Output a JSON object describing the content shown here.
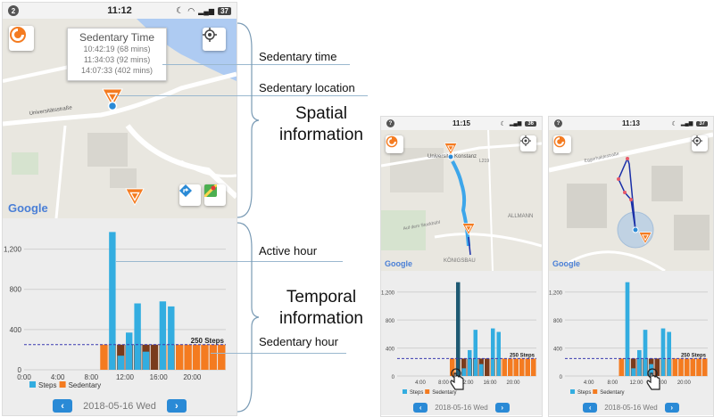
{
  "main_phone": {
    "status_time": "11:12",
    "status_badge": "2",
    "battery": "37",
    "callout": {
      "title": "Sedentary Time",
      "entries": [
        "10:42:19 (68 mins)",
        "11:34:03 (92 mins)",
        "14:07:33 (402 mins)"
      ]
    },
    "map_street": "Universitätsstraße",
    "google_logo": "Google",
    "date": "2018-05-16 Wed"
  },
  "phone2": {
    "status_time": "11:15",
    "battery": "36",
    "map_labels": [
      "Universität Konstanz",
      "ALLMANN",
      "KÖNIGSBAU",
      "Auf dem Stockbühl",
      "L219"
    ],
    "google_logo": "Google",
    "date": "2018-05-16 Wed"
  },
  "phone3": {
    "status_time": "11:13",
    "battery": "37",
    "map_labels": [
      "Eggerhaldestraße"
    ],
    "google_logo": "Google",
    "date": "2018-05-16 Wed"
  },
  "annotations": {
    "sedentary_time": "Sedentary time",
    "sedentary_location": "Sedentary location",
    "spatial": [
      "Spatial",
      "information"
    ],
    "active_hour": "Active hour",
    "temporal": [
      "Temporal",
      "information"
    ],
    "sedentary_hour": "Sedentary hour"
  },
  "colors": {
    "steps": "#33ade0",
    "sedentary": "#f47b20",
    "sedentary_dark": "#7a3b1c",
    "dark_selected": "#1f5a73",
    "nav": "#2a8ad6",
    "marker": "#f47b20",
    "water": "#aecbf2"
  },
  "chart_data": [
    {
      "type": "bar",
      "title": "",
      "ylim": [
        0,
        1400
      ],
      "yticks": [
        "0",
        "400",
        "800",
        "1,200"
      ],
      "xticks": [
        "0:00",
        "4:00",
        "8:00",
        "12:00",
        "16:00",
        "20:00"
      ],
      "threshold": 250,
      "threshold_label": "250 Steps",
      "legend": [
        "Steps",
        "Sedentary"
      ],
      "steps": [
        0,
        0,
        0,
        0,
        0,
        0,
        0,
        0,
        0,
        0,
        1370,
        140,
        370,
        660,
        180,
        0,
        680,
        630,
        0,
        0,
        0,
        0,
        0,
        0
      ],
      "sedentary": [
        0,
        0,
        0,
        0,
        0,
        0,
        0,
        0,
        0,
        250,
        250,
        250,
        250,
        250,
        250,
        250,
        250,
        250,
        250,
        250,
        250,
        250,
        250,
        250
      ]
    },
    {
      "type": "bar",
      "title": "",
      "ylim": [
        0,
        1400
      ],
      "yticks": [
        "0",
        "400",
        "800",
        "1,200"
      ],
      "xticks": [
        "4:00",
        "8:00",
        "12:00",
        "16:00",
        "20:00"
      ],
      "threshold": 250,
      "threshold_label": "250 Steps",
      "legend": [
        "Steps",
        "Sedentary"
      ],
      "selected": 10,
      "steps": [
        0,
        0,
        0,
        0,
        0,
        0,
        0,
        0,
        0,
        0,
        1340,
        110,
        370,
        660,
        170,
        0,
        680,
        630,
        0,
        0,
        0,
        0,
        0,
        0
      ],
      "sedentary": [
        0,
        0,
        0,
        0,
        0,
        0,
        0,
        0,
        0,
        250,
        250,
        250,
        250,
        250,
        250,
        250,
        250,
        250,
        250,
        250,
        250,
        250,
        250,
        250
      ]
    },
    {
      "type": "bar",
      "title": "",
      "ylim": [
        0,
        1400
      ],
      "yticks": [
        "0",
        "400",
        "800",
        "1,200"
      ],
      "xticks": [
        "4:00",
        "8:00",
        "12:00",
        "16:00",
        "20:00"
      ],
      "threshold": 250,
      "threshold_label": "250 Steps",
      "legend": [
        "Steps",
        "Sedentary"
      ],
      "steps": [
        0,
        0,
        0,
        0,
        0,
        0,
        0,
        0,
        0,
        0,
        1340,
        110,
        370,
        660,
        170,
        0,
        680,
        630,
        0,
        0,
        0,
        0,
        0,
        0
      ],
      "sedentary": [
        0,
        0,
        0,
        0,
        0,
        0,
        0,
        0,
        0,
        250,
        250,
        250,
        250,
        250,
        250,
        250,
        250,
        250,
        250,
        250,
        250,
        250,
        250,
        250
      ]
    }
  ]
}
